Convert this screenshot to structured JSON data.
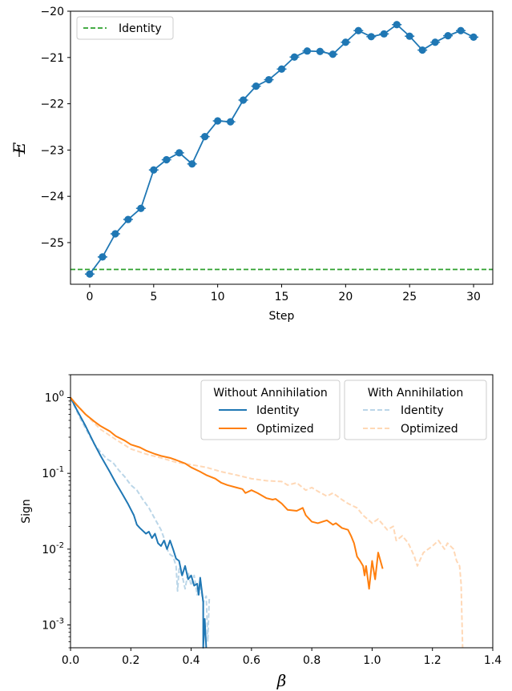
{
  "chart_data": [
    {
      "type": "line",
      "xlabel": "Step",
      "ylabel": "E",
      "xlim": [
        -1.5,
        31.5
      ],
      "ylim": [
        -25.9,
        -20.0
      ],
      "xticks": [
        0,
        5,
        10,
        15,
        20,
        25,
        30
      ],
      "yticks": [
        -25,
        -24,
        -23,
        -22,
        -21,
        -20
      ],
      "grid": false,
      "legend_position": "top-left",
      "series": [
        {
          "color": "#1f77b4",
          "x": [
            0,
            1,
            2,
            3,
            4,
            5,
            6,
            7,
            8,
            9,
            10,
            11,
            12,
            13,
            14,
            15,
            16,
            17,
            18,
            19,
            20,
            21,
            22,
            23,
            24,
            25,
            26,
            27,
            28,
            29,
            30
          ],
          "y": [
            -25.68,
            -25.31,
            -24.81,
            -24.5,
            -24.26,
            -23.43,
            -23.21,
            -23.06,
            -23.3,
            -22.71,
            -22.37,
            -22.39,
            -21.92,
            -21.62,
            -21.48,
            -21.25,
            -20.99,
            -20.86,
            -20.87,
            -20.93,
            -20.67,
            -20.42,
            -20.55,
            -20.49,
            -20.29,
            -20.54,
            -20.84,
            -20.67,
            -20.53,
            -20.42,
            -20.56
          ]
        },
        {
          "name": "Identity",
          "color": "#2ca02c",
          "style": "dashed",
          "hline": -25.58
        }
      ]
    },
    {
      "type": "line",
      "xlabel": "β",
      "ylabel": "Sign",
      "yscale": "log",
      "xlim": [
        0.0,
        1.4
      ],
      "ylim": [
        0.0005,
        2.0
      ],
      "xticks": [
        "0.0",
        "0.2",
        "0.4",
        "0.6",
        "0.8",
        "1.0",
        "1.2",
        "1.4"
      ],
      "yticks": [
        {
          "base": "10",
          "exp": "0"
        },
        {
          "base": "10",
          "exp": "-1"
        },
        {
          "base": "10",
          "exp": "-2"
        },
        {
          "base": "10",
          "exp": "-3"
        }
      ],
      "grid": false,
      "legend_position": "top-right",
      "legend_groups": [
        {
          "title": "Without Annihilation",
          "entries": [
            "Identity",
            "Optimized"
          ]
        },
        {
          "title": "With Annihilation",
          "entries": [
            "Identity",
            "Optimized"
          ]
        }
      ],
      "series": [
        {
          "name": "Identity",
          "group": "Without Annihilation",
          "color": "#1f77b4",
          "style": "solid",
          "opacity": 1.0,
          "x": [
            0.0,
            0.02,
            0.05,
            0.08,
            0.1,
            0.13,
            0.15,
            0.17,
            0.19,
            0.21,
            0.22,
            0.23,
            0.25,
            0.26,
            0.27,
            0.28,
            0.29,
            0.3,
            0.31,
            0.32,
            0.33,
            0.34,
            0.35,
            0.36,
            0.37,
            0.38,
            0.39,
            0.4,
            0.41,
            0.42,
            0.425,
            0.43,
            0.44,
            0.44,
            0.445,
            0.45
          ],
          "y": [
            1.0,
            0.7,
            0.42,
            0.24,
            0.17,
            0.105,
            0.075,
            0.055,
            0.04,
            0.028,
            0.021,
            0.019,
            0.016,
            0.017,
            0.014,
            0.016,
            0.012,
            0.011,
            0.013,
            0.01,
            0.013,
            0.01,
            0.0075,
            0.007,
            0.0045,
            0.006,
            0.004,
            0.0045,
            0.0033,
            0.0035,
            0.0025,
            0.0042,
            0.002,
            0.0005,
            0.0012,
            0.0005
          ]
        },
        {
          "name": "Optimized",
          "group": "Without Annihilation",
          "color": "#ff7f0e",
          "style": "solid",
          "opacity": 1.0,
          "x": [
            0.0,
            0.02,
            0.05,
            0.08,
            0.1,
            0.13,
            0.15,
            0.18,
            0.2,
            0.23,
            0.25,
            0.28,
            0.3,
            0.33,
            0.35,
            0.38,
            0.4,
            0.43,
            0.45,
            0.48,
            0.5,
            0.52,
            0.55,
            0.57,
            0.58,
            0.6,
            0.62,
            0.65,
            0.67,
            0.68,
            0.7,
            0.72,
            0.75,
            0.77,
            0.78,
            0.8,
            0.82,
            0.85,
            0.87,
            0.88,
            0.9,
            0.92,
            0.93,
            0.94,
            0.95,
            0.96,
            0.97,
            0.975,
            0.98,
            0.99,
            1.0,
            1.01,
            1.02,
            1.035
          ],
          "y": [
            1.0,
            0.8,
            0.6,
            0.48,
            0.42,
            0.36,
            0.31,
            0.27,
            0.24,
            0.22,
            0.2,
            0.18,
            0.17,
            0.16,
            0.15,
            0.135,
            0.12,
            0.105,
            0.095,
            0.085,
            0.075,
            0.07,
            0.065,
            0.062,
            0.055,
            0.06,
            0.055,
            0.047,
            0.045,
            0.046,
            0.04,
            0.033,
            0.032,
            0.035,
            0.028,
            0.023,
            0.022,
            0.024,
            0.021,
            0.022,
            0.019,
            0.018,
            0.015,
            0.012,
            0.008,
            0.007,
            0.006,
            0.0045,
            0.006,
            0.003,
            0.007,
            0.004,
            0.009,
            0.0055
          ]
        },
        {
          "name": "Identity",
          "group": "With Annihilation",
          "color": "#1f77b4",
          "style": "dashed",
          "opacity": 0.3,
          "x": [
            0.0,
            0.03,
            0.06,
            0.08,
            0.1,
            0.12,
            0.14,
            0.16,
            0.18,
            0.2,
            0.22,
            0.24,
            0.26,
            0.28,
            0.3,
            0.31,
            0.32,
            0.33,
            0.34,
            0.35,
            0.355,
            0.36,
            0.37,
            0.38,
            0.39,
            0.4,
            0.41,
            0.42,
            0.43,
            0.44,
            0.45,
            0.455,
            0.46
          ],
          "y": [
            1.0,
            0.55,
            0.33,
            0.24,
            0.19,
            0.155,
            0.14,
            0.11,
            0.09,
            0.07,
            0.06,
            0.045,
            0.035,
            0.025,
            0.018,
            0.014,
            0.01,
            0.0085,
            0.008,
            0.006,
            0.0028,
            0.0055,
            0.0045,
            0.003,
            0.005,
            0.0033,
            0.0045,
            0.0025,
            0.0032,
            0.002,
            0.0024,
            0.0006,
            0.0022
          ]
        },
        {
          "name": "Optimized",
          "group": "With Annihilation",
          "color": "#ff7f0e",
          "style": "dashed",
          "opacity": 0.3,
          "x": [
            0.0,
            0.05,
            0.1,
            0.15,
            0.2,
            0.25,
            0.3,
            0.35,
            0.4,
            0.45,
            0.5,
            0.55,
            0.6,
            0.65,
            0.7,
            0.72,
            0.75,
            0.78,
            0.8,
            0.82,
            0.85,
            0.87,
            0.9,
            0.92,
            0.95,
            0.97,
            1.0,
            1.02,
            1.05,
            1.07,
            1.08,
            1.1,
            1.12,
            1.14,
            1.15,
            1.17,
            1.2,
            1.22,
            1.24,
            1.25,
            1.27,
            1.28,
            1.29,
            1.295,
            1.3
          ],
          "y": [
            1.0,
            0.6,
            0.38,
            0.28,
            0.21,
            0.18,
            0.16,
            0.14,
            0.13,
            0.12,
            0.105,
            0.095,
            0.085,
            0.08,
            0.078,
            0.07,
            0.075,
            0.06,
            0.065,
            0.058,
            0.05,
            0.055,
            0.045,
            0.04,
            0.035,
            0.028,
            0.022,
            0.025,
            0.018,
            0.02,
            0.013,
            0.015,
            0.012,
            0.008,
            0.006,
            0.009,
            0.011,
            0.013,
            0.01,
            0.012,
            0.01,
            0.007,
            0.006,
            0.0035,
            0.0005
          ]
        }
      ]
    }
  ]
}
